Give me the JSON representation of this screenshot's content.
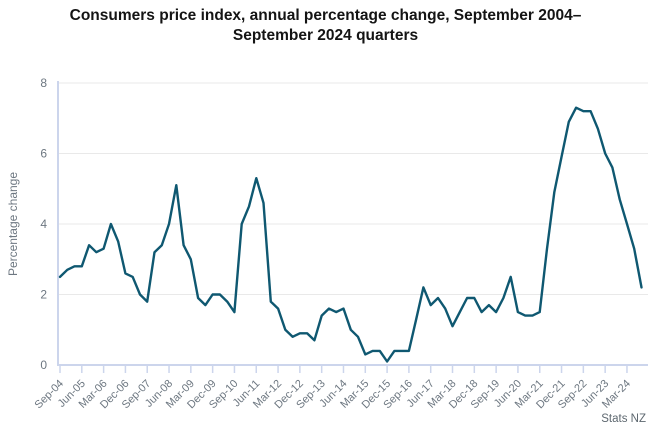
{
  "source": "Stats NZ",
  "colors": {
    "line": "#0f5871",
    "grid": "#e9e9e9",
    "axis": "#ccd5ec",
    "tick_text": "#6d7781",
    "title_text": "#141414",
    "source_text": "#5e6870"
  },
  "chart_data": {
    "type": "line",
    "title": "Consumers price index, annual percentage change, September 2004–September 2024 quarters",
    "xlabel": "",
    "ylabel": "Percentage change",
    "ylim": [
      0,
      8
    ],
    "yticks": [
      0,
      2,
      4,
      6,
      8
    ],
    "grid": true,
    "legend_position": "none",
    "label_every": 3,
    "xtick_labels": [
      "Sep-04",
      "Jun-05",
      "Mar-06",
      "Dec-06",
      "Sep-07",
      "Jun-08",
      "Mar-09",
      "Dec-09",
      "Sep-10",
      "Jun-11",
      "Mar-12",
      "Dec-12",
      "Sep-13",
      "Jun-14",
      "Mar-15",
      "Dec-15",
      "Sep-16",
      "Jun-17",
      "Mar-18",
      "Dec-18",
      "Sep-19",
      "Jun-20",
      "Mar-21",
      "Dec-21",
      "Sep-22",
      "Jun-23",
      "Mar-24"
    ],
    "x": [
      "Sep-04",
      "Dec-04",
      "Mar-05",
      "Jun-05",
      "Sep-05",
      "Dec-05",
      "Mar-06",
      "Jun-06",
      "Sep-06",
      "Dec-06",
      "Mar-07",
      "Jun-07",
      "Sep-07",
      "Dec-07",
      "Mar-08",
      "Jun-08",
      "Sep-08",
      "Dec-08",
      "Mar-09",
      "Jun-09",
      "Sep-09",
      "Dec-09",
      "Mar-10",
      "Jun-10",
      "Sep-10",
      "Dec-10",
      "Mar-11",
      "Jun-11",
      "Sep-11",
      "Dec-11",
      "Mar-12",
      "Jun-12",
      "Sep-12",
      "Dec-12",
      "Mar-13",
      "Jun-13",
      "Sep-13",
      "Dec-13",
      "Mar-14",
      "Jun-14",
      "Sep-14",
      "Dec-14",
      "Mar-15",
      "Jun-15",
      "Sep-15",
      "Dec-15",
      "Mar-16",
      "Jun-16",
      "Sep-16",
      "Dec-16",
      "Mar-17",
      "Jun-17",
      "Sep-17",
      "Dec-17",
      "Mar-18",
      "Jun-18",
      "Sep-18",
      "Dec-18",
      "Mar-19",
      "Jun-19",
      "Sep-19",
      "Dec-19",
      "Mar-20",
      "Jun-20",
      "Sep-20",
      "Dec-20",
      "Mar-21",
      "Jun-21",
      "Sep-21",
      "Dec-21",
      "Mar-22",
      "Jun-22",
      "Sep-22",
      "Dec-22",
      "Mar-23",
      "Jun-23",
      "Sep-23",
      "Dec-23",
      "Mar-24",
      "Jun-24",
      "Sep-24"
    ],
    "series": [
      {
        "name": "CPI annual percentage change",
        "values": [
          2.5,
          2.7,
          2.8,
          2.8,
          3.4,
          3.2,
          3.3,
          4.0,
          3.5,
          2.6,
          2.5,
          2.0,
          1.8,
          3.2,
          3.4,
          4.0,
          5.1,
          3.4,
          3.0,
          1.9,
          1.7,
          2.0,
          2.0,
          1.8,
          1.5,
          4.0,
          4.5,
          5.3,
          4.6,
          1.8,
          1.6,
          1.0,
          0.8,
          0.9,
          0.9,
          0.7,
          1.4,
          1.6,
          1.5,
          1.6,
          1.0,
          0.8,
          0.3,
          0.4,
          0.4,
          0.1,
          0.4,
          0.4,
          0.4,
          1.3,
          2.2,
          1.7,
          1.9,
          1.6,
          1.1,
          1.5,
          1.9,
          1.9,
          1.5,
          1.7,
          1.5,
          1.9,
          2.5,
          1.5,
          1.4,
          1.4,
          1.5,
          3.3,
          4.9,
          5.9,
          6.9,
          7.3,
          7.2,
          7.2,
          6.7,
          6.0,
          5.6,
          4.7,
          4.0,
          3.3,
          2.2
        ]
      }
    ]
  }
}
